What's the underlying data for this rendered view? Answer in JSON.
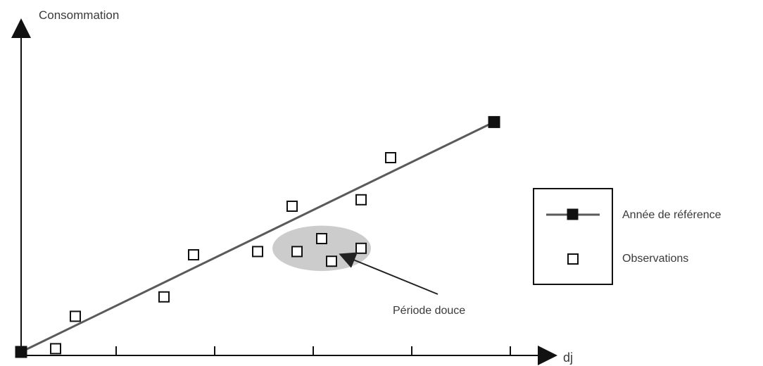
{
  "chart_data": {
    "type": "scatter",
    "ylabel": "Consommation",
    "xlabel": "dj",
    "xlim": [
      0,
      1
    ],
    "ylim": [
      0,
      1
    ],
    "x_ticks": [
      0.2,
      0.4,
      0.6,
      0.8,
      1.0
    ],
    "grid": false,
    "axis_scale_labels": false,
    "legend": {
      "placement": "right",
      "entries": [
        {
          "name": "Année de référence",
          "marker": "filled-square-on-line"
        },
        {
          "name": "Observations",
          "marker": "open-square"
        }
      ]
    },
    "series": [
      {
        "name": "Année de référence",
        "kind": "line",
        "points": [
          [
            0.0,
            0.0
          ],
          [
            0.96,
            0.71
          ]
        ]
      },
      {
        "name": "Observations",
        "kind": "scatter",
        "points": [
          [
            0.07,
            0.01
          ],
          [
            0.11,
            0.11
          ],
          [
            0.29,
            0.17
          ],
          [
            0.35,
            0.3
          ],
          [
            0.48,
            0.31
          ],
          [
            0.55,
            0.45
          ],
          [
            0.56,
            0.31
          ],
          [
            0.63,
            0.28
          ],
          [
            0.61,
            0.35
          ],
          [
            0.69,
            0.32
          ],
          [
            0.69,
            0.47
          ],
          [
            0.75,
            0.6
          ]
        ]
      }
    ],
    "annotations": [
      {
        "text": "Période douce",
        "region": {
          "center": [
            0.61,
            0.32
          ],
          "rx": 0.1,
          "ry": 0.07,
          "fill": "#cccccc"
        },
        "arrow_to": [
          0.65,
          0.3
        ]
      }
    ]
  },
  "colors": {
    "axis": "#111111",
    "reference_line": "#5a5a5a",
    "highlight_region": "#cccccc",
    "marker_fill_open": "#ffffff",
    "marker_fill_ref": "#111111"
  }
}
